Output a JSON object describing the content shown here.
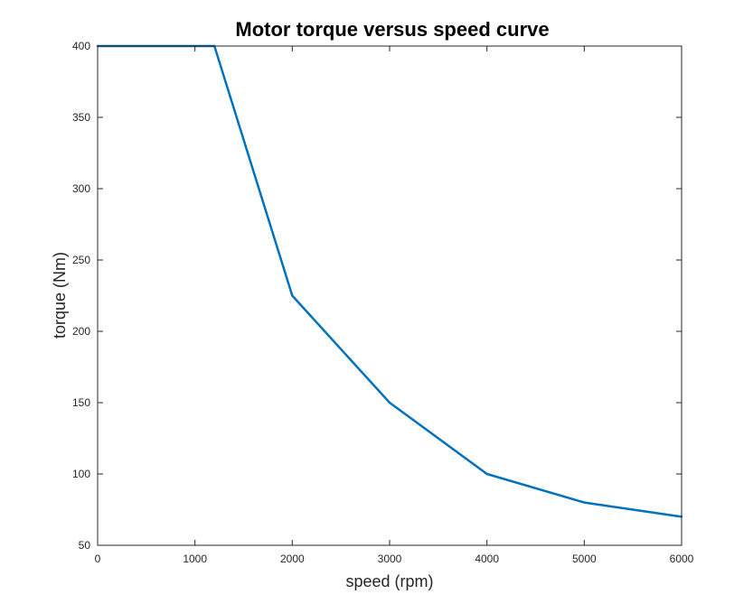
{
  "chart_data": {
    "type": "line",
    "title": "Motor torque versus speed curve",
    "xlabel": "speed (rpm)",
    "ylabel": "torque (Nm)",
    "xlim": [
      0,
      6000
    ],
    "ylim": [
      50,
      400
    ],
    "xticks": [
      0,
      1000,
      2000,
      3000,
      4000,
      5000,
      6000
    ],
    "yticks": [
      50,
      100,
      150,
      200,
      250,
      300,
      350,
      400
    ],
    "grid": false,
    "legend": "none",
    "series": [
      {
        "color": "#0072BD",
        "x": [
          0,
          1200,
          2000,
          3000,
          4000,
          5000,
          6000
        ],
        "y": [
          400,
          400,
          225,
          150,
          100,
          80,
          70
        ]
      }
    ]
  }
}
